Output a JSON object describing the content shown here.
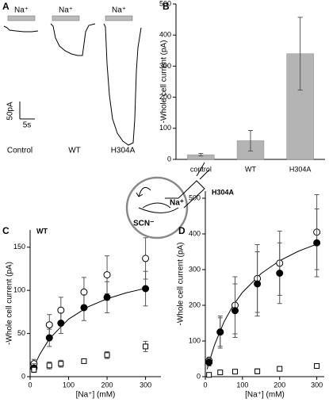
{
  "panel_a": {
    "label": "A",
    "stimulus": [
      "Na⁺",
      "Na⁺",
      "Na⁺"
    ],
    "scale_y": "50pA",
    "scale_x": "5s",
    "conditions": [
      "Control",
      "WT",
      "H304A"
    ]
  },
  "diagram": {
    "ion": "Na⁺",
    "anion": "SCN⁻"
  },
  "chart_data": [
    {
      "type": "bar",
      "panel": "B",
      "categories": [
        "control",
        "WT",
        "H304A"
      ],
      "values": [
        15,
        60,
        340
      ],
      "errors": [
        4,
        33,
        117
      ],
      "color": "#b4b4b4",
      "ylim": [
        0,
        500
      ],
      "yticks": [
        0,
        100,
        200,
        300,
        400,
        500
      ],
      "ylabel": "-Whole cell current (pA)"
    },
    {
      "type": "scatter",
      "panel": "C",
      "label": "WT",
      "x": [
        10,
        50,
        80,
        140,
        200,
        300
      ],
      "series": [
        {
          "marker": "circle-open",
          "color": "#000",
          "values": [
            15,
            60,
            77,
            98,
            118,
            137
          ],
          "errors": [
            5,
            12,
            15,
            17,
            22,
            24
          ]
        },
        {
          "marker": "circle-filled",
          "color": "#000",
          "values": [
            10,
            45,
            62,
            80,
            92,
            102
          ],
          "errors": [
            5,
            10,
            12,
            15,
            18,
            20
          ]
        },
        {
          "marker": "square-open",
          "color": "#000",
          "values": [
            8,
            13,
            15,
            18,
            25,
            35
          ],
          "errors": [
            3,
            4,
            4,
            2,
            4,
            6
          ]
        }
      ],
      "fit": {
        "x": [
          5,
          10,
          25,
          50,
          75,
          100,
          150,
          200,
          250,
          300
        ],
        "values": [
          6.1,
          11.7,
          25.9,
          43.8,
          55.4,
          66.7,
          80.8,
          90.3,
          97.2,
          102.4
        ]
      },
      "xlim": [
        0,
        340
      ],
      "xticks": [
        0,
        100,
        200,
        300
      ],
      "ylim": [
        0,
        170
      ],
      "yticks": [
        0,
        50,
        100,
        150
      ],
      "xlabel": "[Na⁺] (mM)",
      "ylabel": "-Whole cell current (pA)"
    },
    {
      "type": "scatter",
      "panel": "D",
      "label": "H304A",
      "x": [
        10,
        40,
        80,
        140,
        200,
        300
      ],
      "series": [
        {
          "marker": "circle-open",
          "color": "#000",
          "values": [
            45,
            125,
            200,
            275,
            318,
            405
          ],
          "errors": [
            10,
            45,
            80,
            95,
            90,
            105
          ]
        },
        {
          "marker": "circle-filled",
          "color": "#000",
          "values": [
            40,
            125,
            185,
            260,
            290,
            375
          ],
          "errors": [
            10,
            40,
            75,
            90,
            85,
            95
          ]
        },
        {
          "marker": "square-open",
          "color": "#000",
          "values": [
            5,
            12,
            14,
            15,
            22,
            30
          ],
          "errors": [
            3,
            5,
            5,
            7,
            6,
            6
          ]
        }
      ],
      "fit": {
        "x": [
          5,
          10,
          25,
          50,
          75,
          100,
          150,
          200,
          250,
          300
        ],
        "values": [
          20.8,
          40,
          89.7,
          152.9,
          200,
          236.4,
          288.9,
          325,
          351.4,
          371.4
        ]
      },
      "xlim": [
        0,
        320
      ],
      "xticks": [
        0,
        100,
        200,
        300
      ],
      "ylim": [
        0,
        520
      ],
      "yticks": [
        0,
        100,
        200,
        300,
        400,
        500
      ],
      "xlabel": "[Na⁺] (mM)",
      "ylabel": "-Whole cell current (pA)"
    }
  ]
}
